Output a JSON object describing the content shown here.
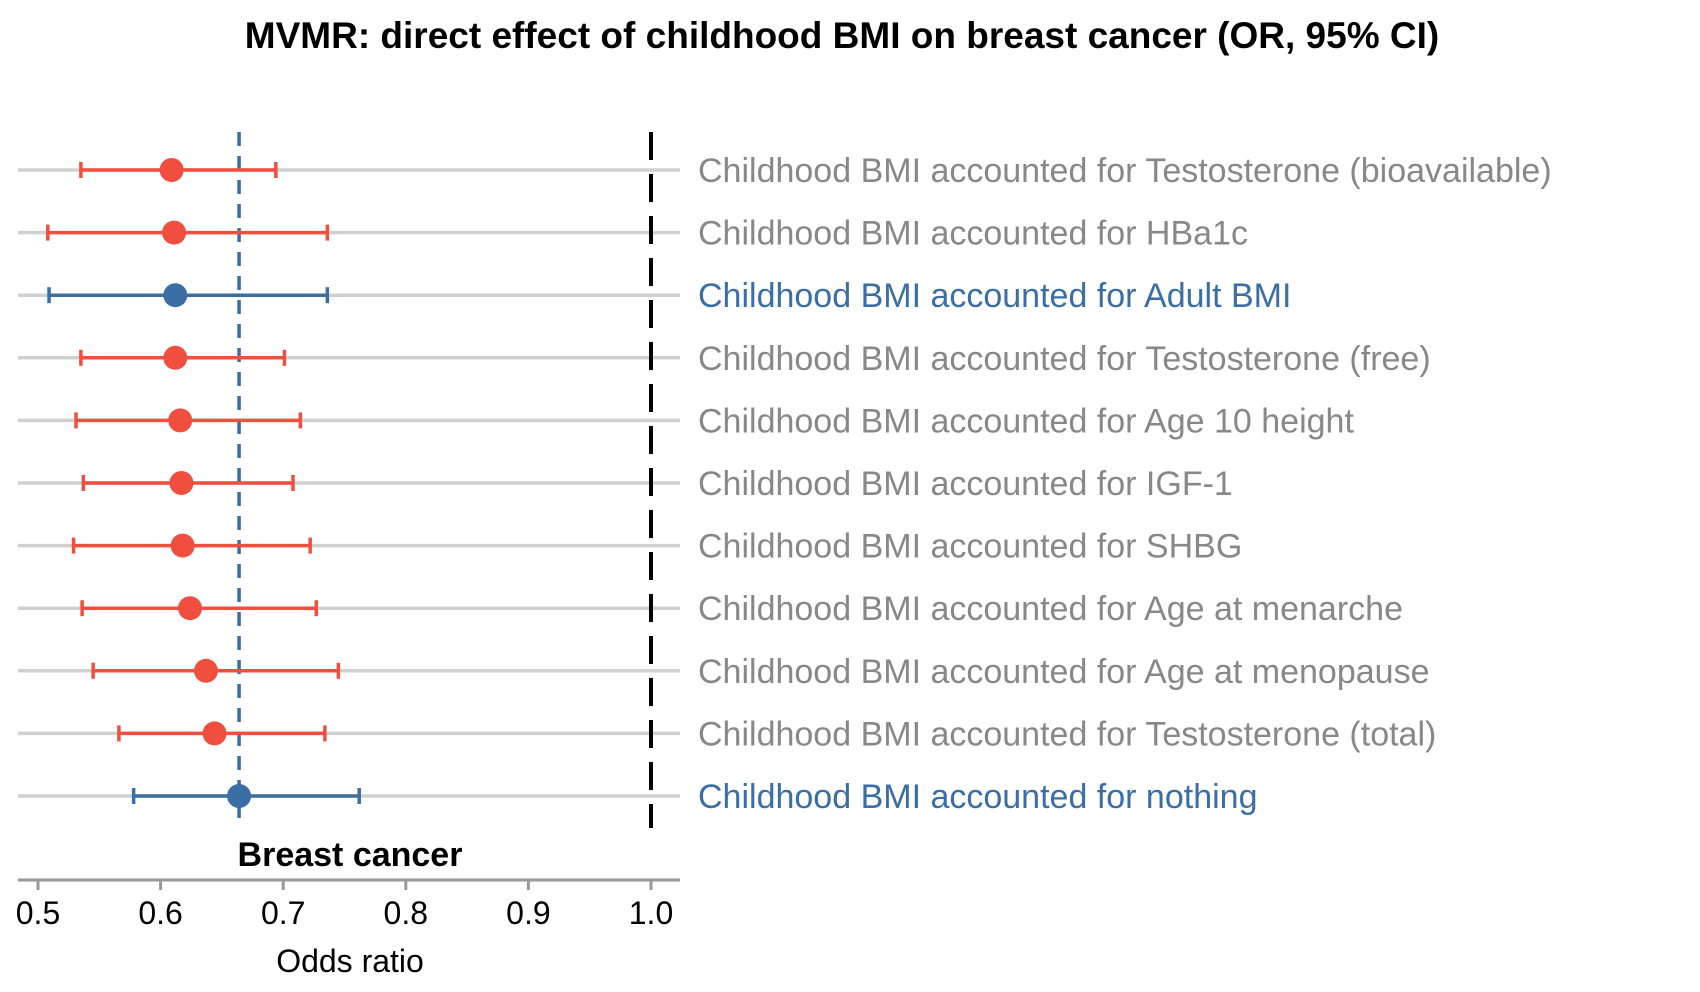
{
  "chart_data": {
    "type": "forest",
    "title": "MVMR: direct effect of childhood BMI on breast cancer (OR, 95% CI)",
    "panel_label": "Breast cancer",
    "xlabel": "Odds ratio",
    "xlim": [
      0.485,
      1.03
    ],
    "xticks": [
      "0.5",
      "0.6",
      "0.7",
      "0.8",
      "0.9",
      "1.0"
    ],
    "reference_line": 1.0,
    "baseline_line": 0.664,
    "colors": {
      "highlight": "#3A6EA5",
      "other": "#F04E3E",
      "label_other": "#888888",
      "track": "#D0D0D0"
    },
    "rows": [
      {
        "label": "Childhood BMI accounted for Testosterone (bioavailable)",
        "or": 0.609,
        "lo": 0.535,
        "hi": 0.694,
        "highlight": false
      },
      {
        "label": "Childhood BMI accounted for HBa1c",
        "or": 0.611,
        "lo": 0.508,
        "hi": 0.736,
        "highlight": false
      },
      {
        "label": "Childhood BMI accounted for Adult BMI",
        "or": 0.612,
        "lo": 0.509,
        "hi": 0.736,
        "highlight": true
      },
      {
        "label": "Childhood BMI accounted for Testosterone (free)",
        "or": 0.612,
        "lo": 0.535,
        "hi": 0.701,
        "highlight": false
      },
      {
        "label": "Childhood BMI accounted for Age 10 height",
        "or": 0.616,
        "lo": 0.531,
        "hi": 0.714,
        "highlight": false
      },
      {
        "label": "Childhood BMI accounted for IGF-1",
        "or": 0.617,
        "lo": 0.537,
        "hi": 0.708,
        "highlight": false
      },
      {
        "label": "Childhood BMI accounted for SHBG",
        "or": 0.618,
        "lo": 0.529,
        "hi": 0.722,
        "highlight": false
      },
      {
        "label": "Childhood BMI accounted for Age at menarche",
        "or": 0.624,
        "lo": 0.536,
        "hi": 0.727,
        "highlight": false
      },
      {
        "label": "Childhood BMI accounted for Age at menopause",
        "or": 0.637,
        "lo": 0.545,
        "hi": 0.745,
        "highlight": false
      },
      {
        "label": "Childhood BMI accounted for Testosterone (total)",
        "or": 0.644,
        "lo": 0.566,
        "hi": 0.734,
        "highlight": false
      },
      {
        "label": "Childhood BMI accounted for nothing",
        "or": 0.664,
        "lo": 0.578,
        "hi": 0.762,
        "highlight": true
      }
    ]
  }
}
